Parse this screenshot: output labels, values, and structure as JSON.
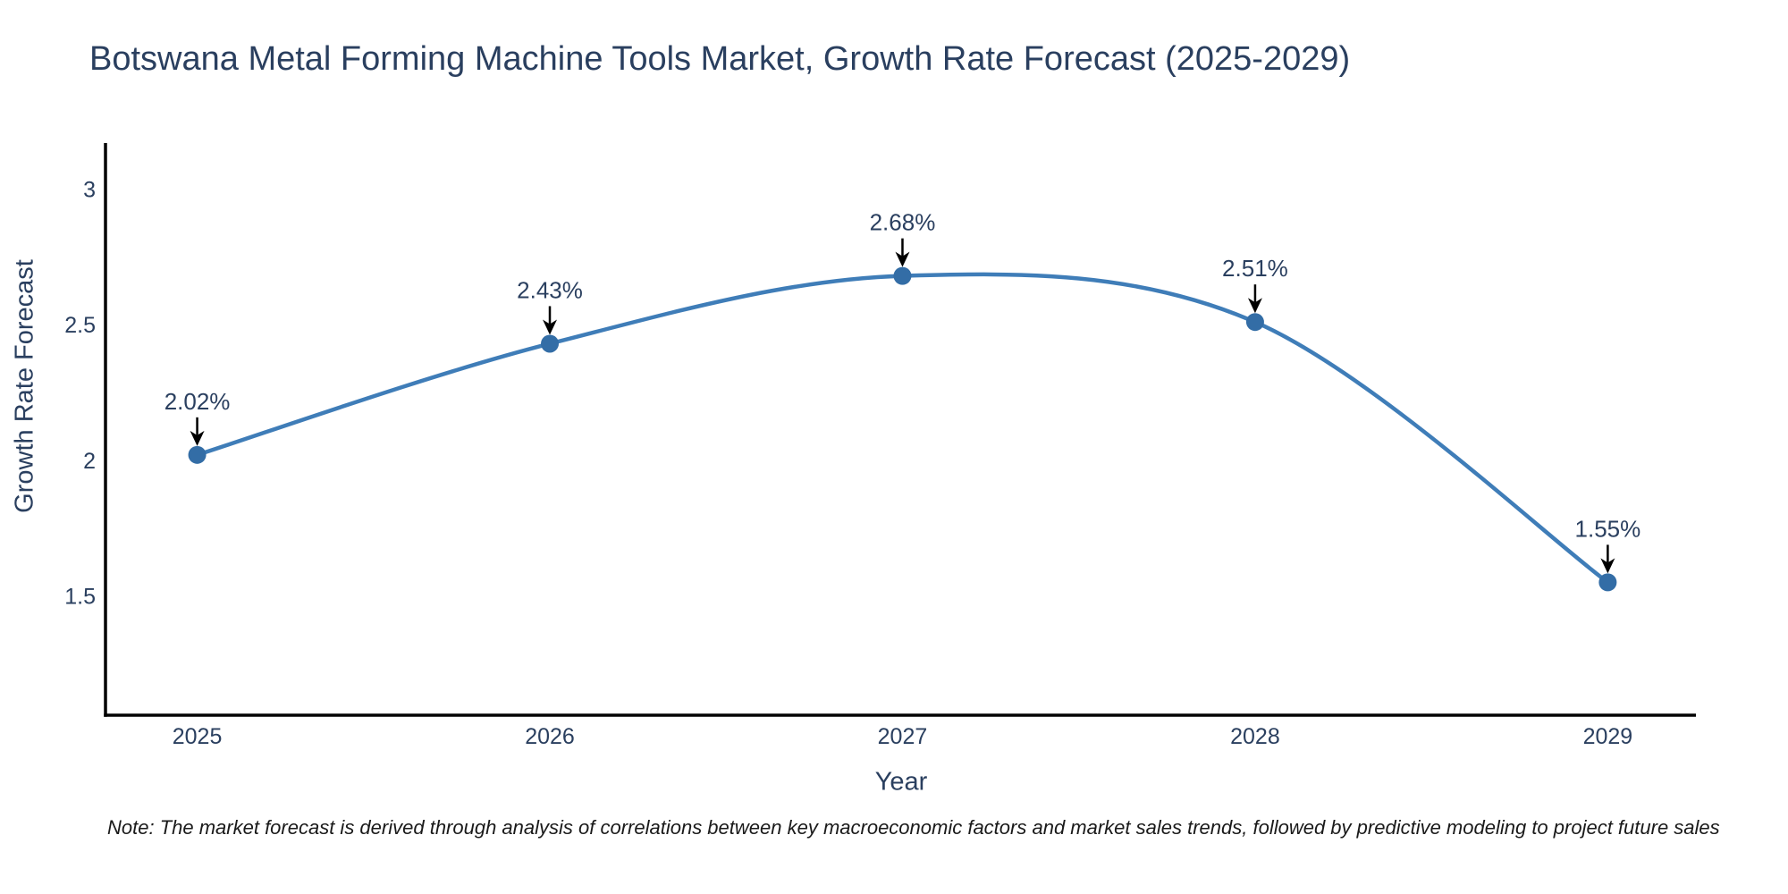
{
  "chart_data": {
    "type": "line",
    "title": "Botswana Metal Forming Machine Tools Market, Growth Rate Forecast (2025-2029)",
    "xlabel": "Year",
    "ylabel": "Growth Rate Forecast",
    "x": [
      2025,
      2026,
      2027,
      2028,
      2029
    ],
    "series": [
      {
        "name": "Growth Rate Forecast",
        "values": [
          2.02,
          2.43,
          2.68,
          2.51,
          1.55
        ],
        "point_labels": [
          "2.02%",
          "2.43%",
          "2.68%",
          "2.51%",
          "1.55%"
        ]
      }
    ],
    "x_tick_labels": [
      "2025",
      "2026",
      "2027",
      "2028",
      "2029"
    ],
    "y_ticks": [
      1.5,
      2,
      2.5,
      3
    ],
    "y_tick_labels": [
      "1.5",
      "2",
      "2.5",
      "3"
    ],
    "xlim": [
      2024.74,
      2029.25
    ],
    "ylim": [
      1.06,
      3.17
    ],
    "grid": false,
    "legend": "none",
    "line_shape": "spline",
    "colors": {
      "line": "#3f7db8",
      "marker": "#336da6",
      "axis_line": "#000000",
      "tick_text": "#2a3f5f",
      "title_text": "#2a3f5f",
      "annotation_text": "#2a3f5f",
      "annotation_arrow": "#000000",
      "note_text": "#1a1a1a",
      "background": "#ffffff"
    }
  },
  "note": "Note: The market forecast is derived through analysis of correlations between key macroeconomic factors and market sales trends, followed by predictive modeling to project future sales"
}
